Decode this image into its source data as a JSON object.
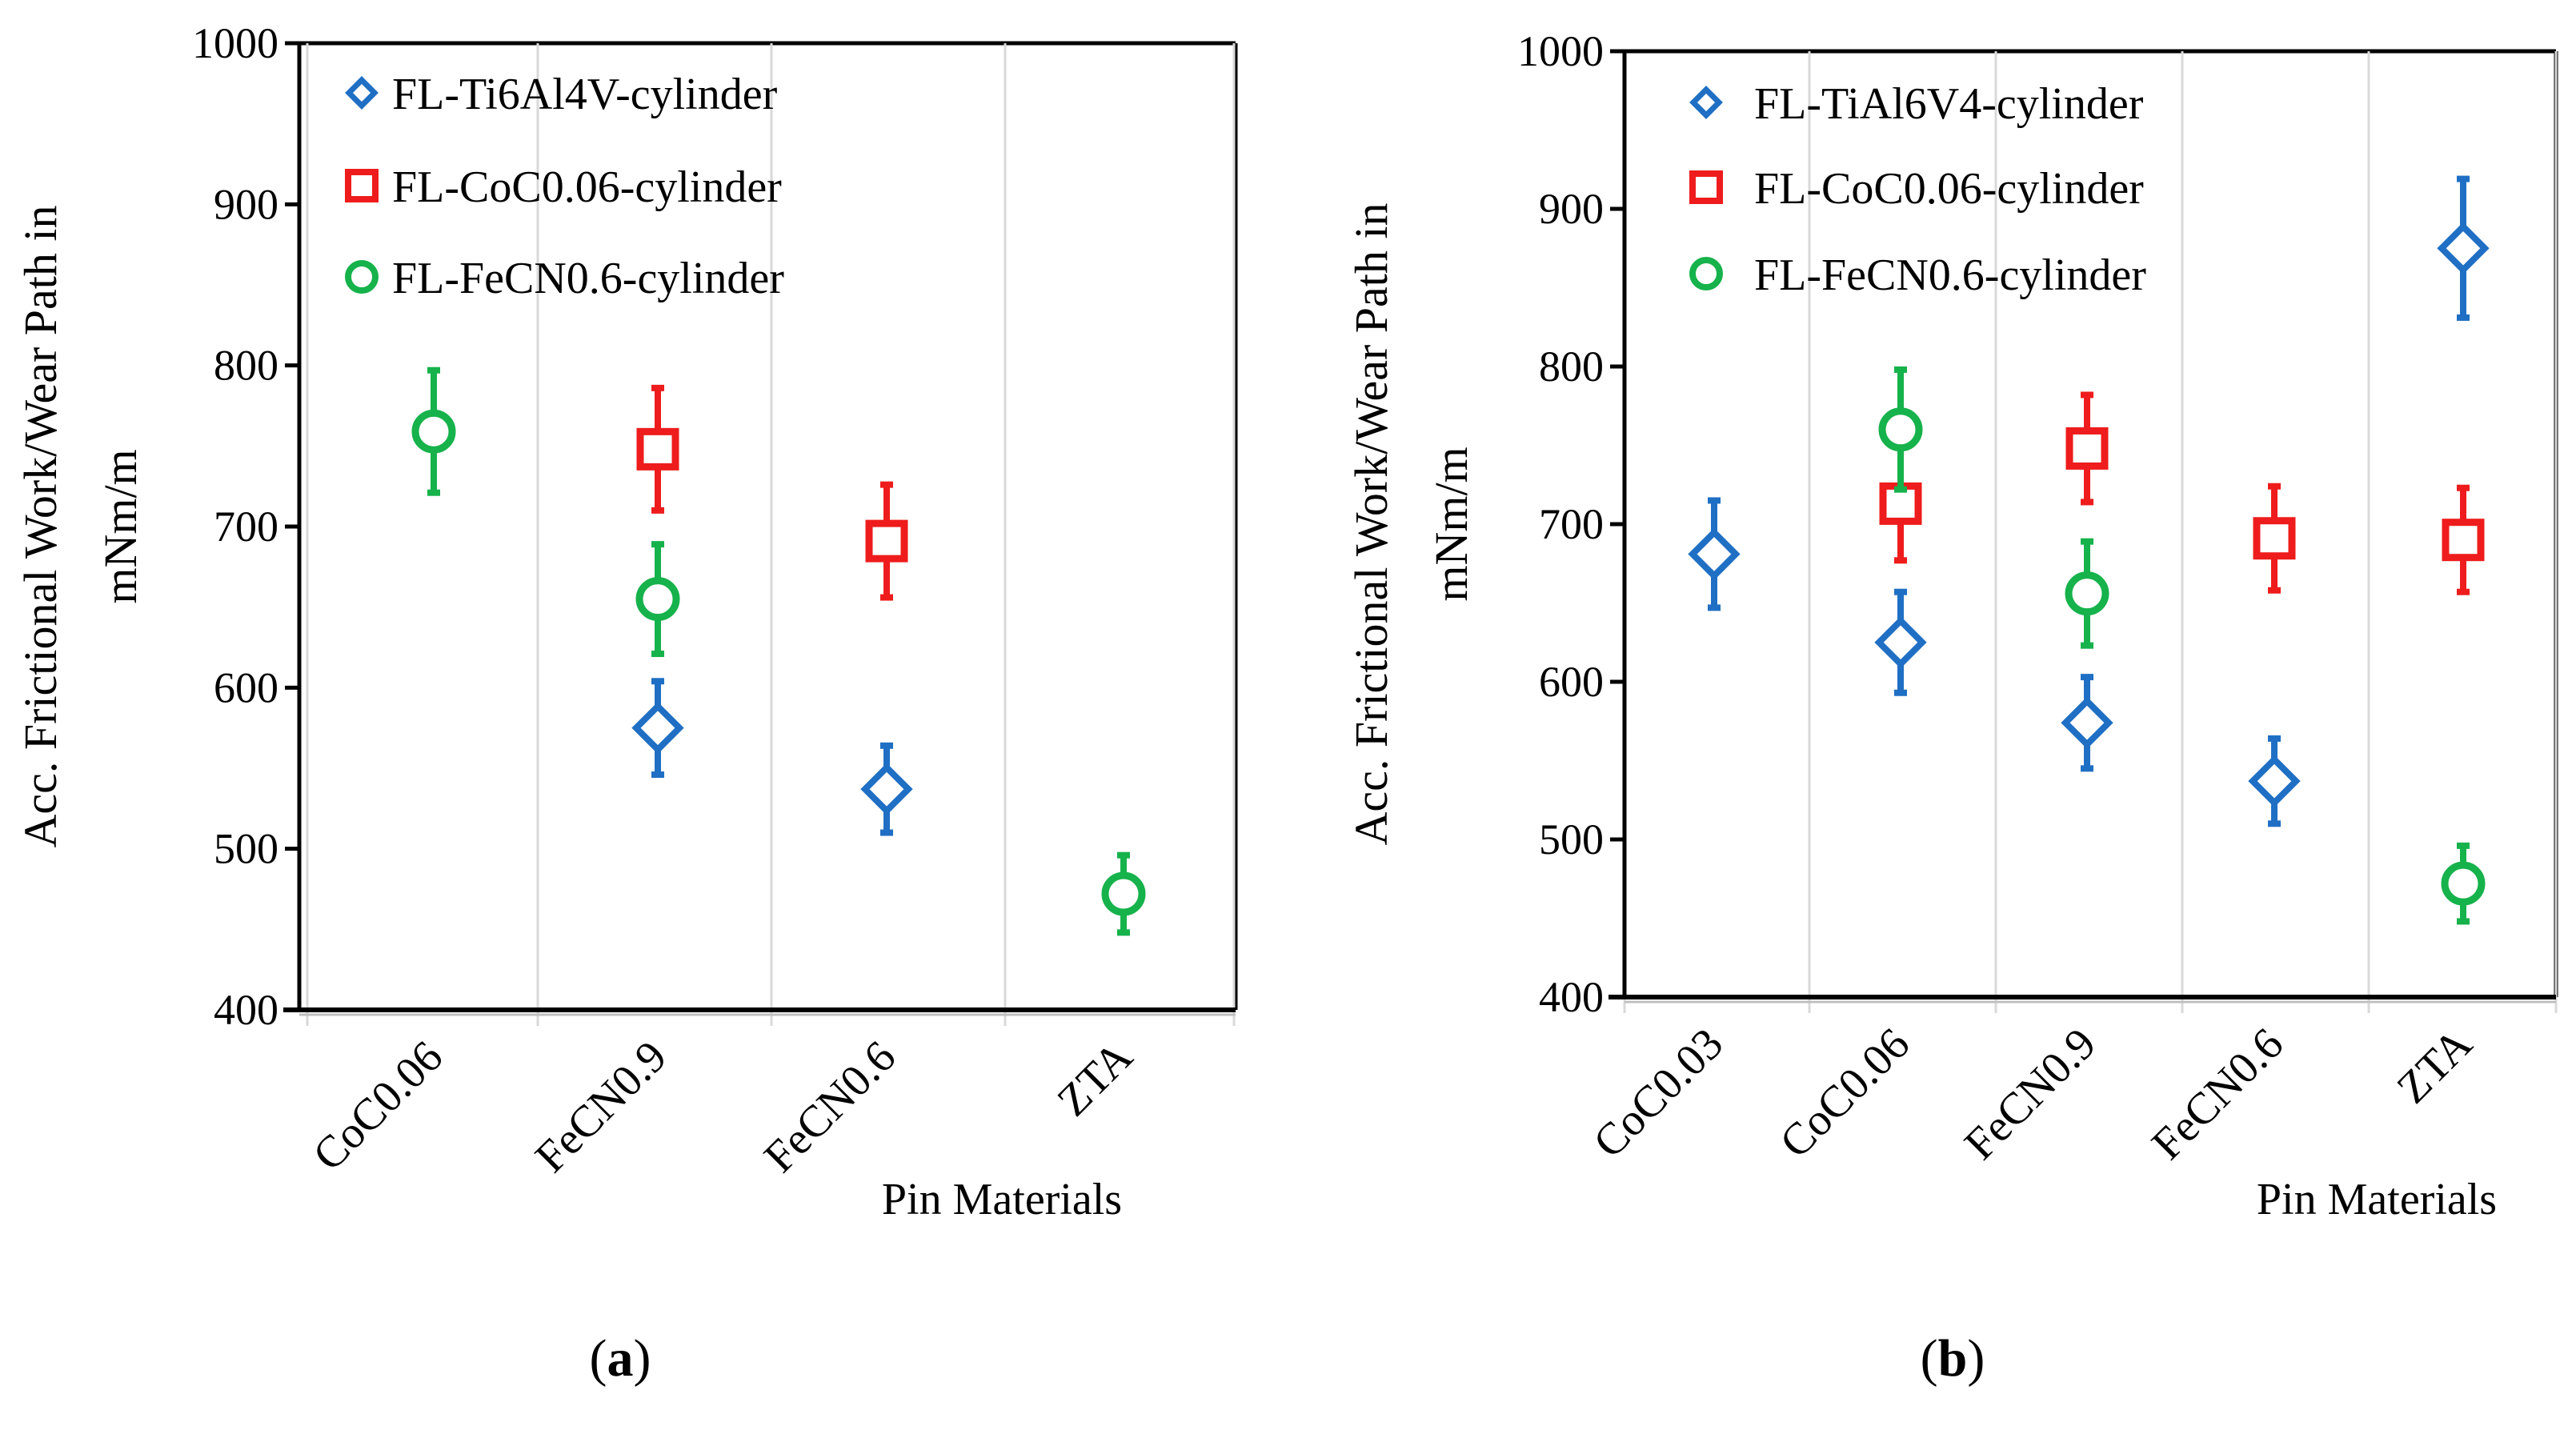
{
  "colors": {
    "ti_series": "#1f6fc4",
    "co_series": "#ee1c1c",
    "fe_series": "#16b24b",
    "grid": "#d9d9d9",
    "axis": "#000000"
  },
  "chart_data": [
    {
      "type": "scatter",
      "panel_label": "a",
      "xlabel": "Pin Materials",
      "ylabel_line1": "Acc. Frictional Work/Wear Path in",
      "ylabel_line2": "mNm/m",
      "ylim": [
        400,
        1000
      ],
      "yticks": [
        "400",
        "500",
        "600",
        "700",
        "800",
        "900",
        "1000"
      ],
      "grid": true,
      "legend_position": "top-left",
      "categories": [
        "CoC0.06",
        "FeCN0.9",
        "FeCN0.6",
        "ZTA"
      ],
      "series": [
        {
          "name": "FL-Ti6Al4V-cylinder",
          "marker": "diamond",
          "color_key": "ti_series",
          "values": [
            null,
            575,
            537,
            null
          ],
          "errors": [
            null,
            29,
            27,
            null
          ]
        },
        {
          "name": "FL-CoC0.06-cylinder",
          "marker": "square",
          "color_key": "co_series",
          "values": [
            null,
            748,
            691,
            null
          ],
          "errors": [
            null,
            38,
            35,
            null
          ]
        },
        {
          "name": "FL-FeCN0.6-cylinder",
          "marker": "circle",
          "color_key": "fe_series",
          "values": [
            759,
            655,
            null,
            472
          ],
          "errors": [
            38,
            34,
            null,
            24
          ]
        }
      ]
    },
    {
      "type": "scatter",
      "panel_label": "b",
      "xlabel": "Pin Materials",
      "ylabel_line1": "Acc. Frictional Work/Wear Path in",
      "ylabel_line2": "mNm/m",
      "ylim": [
        400,
        1000
      ],
      "yticks": [
        "400",
        "500",
        "600",
        "700",
        "800",
        "900",
        "1000"
      ],
      "grid": true,
      "legend_position": "top-left",
      "categories": [
        "CoC0.03",
        "CoC0.06",
        "FeCN0.9",
        "FeCN0.6",
        "ZTA"
      ],
      "series": [
        {
          "name": "FL-TiAl6V4-cylinder",
          "marker": "diamond",
          "color_key": "ti_series",
          "values": [
            681,
            625,
            574,
            537,
            875
          ],
          "errors": [
            34,
            32,
            29,
            27,
            44
          ]
        },
        {
          "name": "FL-CoC0.06-cylinder",
          "marker": "square",
          "color_key": "co_series",
          "values": [
            null,
            713,
            748,
            691,
            690
          ],
          "errors": [
            null,
            36,
            34,
            33,
            33
          ]
        },
        {
          "name": "FL-FeCN0.6-cylinder",
          "marker": "circle",
          "color_key": "fe_series",
          "values": [
            null,
            760,
            656,
            null,
            472
          ],
          "errors": [
            null,
            38,
            33,
            null,
            24
          ]
        }
      ]
    }
  ]
}
